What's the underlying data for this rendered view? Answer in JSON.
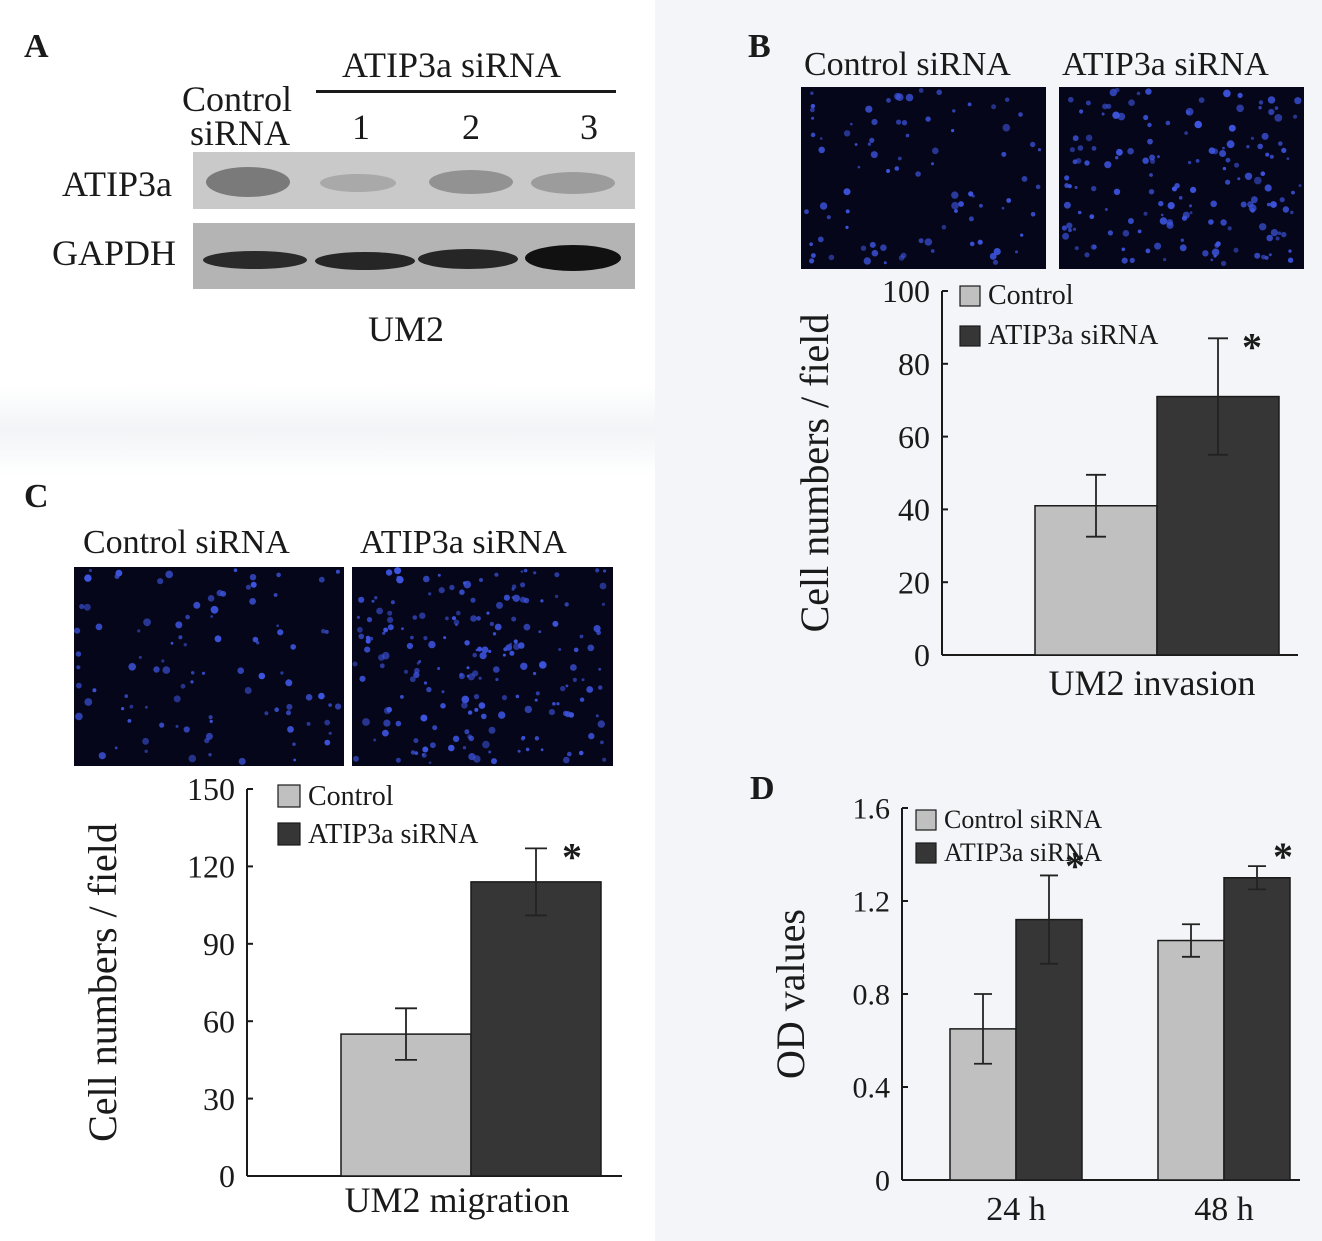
{
  "panel_a": {
    "letter": "A",
    "group_label": "ATIP3a siRNA",
    "lane_control_line1": "Control",
    "lane_control_line2": "siRNA",
    "lanes": [
      "1",
      "2",
      "3"
    ],
    "row_labels": [
      "ATIP3a",
      "GAPDH"
    ],
    "cell_line": "UM2"
  },
  "panel_b": {
    "letter": "B",
    "image_labels": [
      "Control siRNA",
      "ATIP3a siRNA"
    ]
  },
  "panel_c": {
    "letter": "C",
    "image_labels": [
      "Control siRNA",
      "ATIP3a siRNA"
    ]
  },
  "panel_d": {
    "letter": "D"
  },
  "colors": {
    "control": "#c0c0c0",
    "treatment": "#363636",
    "stain": "#3d55e0",
    "micro_bg": "#06061a"
  },
  "chart_data": [
    {
      "id": "B",
      "type": "bar",
      "xlabel": "UM2 invasion",
      "ylabel": "Cell numbers / field",
      "ylim": [
        0,
        100
      ],
      "yticks": [
        0,
        20,
        40,
        60,
        80,
        100
      ],
      "categories": [
        ""
      ],
      "legend_position": "top-left",
      "series": [
        {
          "name": "Control",
          "values": [
            41
          ],
          "errors": [
            8.5
          ],
          "sig": [
            ""
          ]
        },
        {
          "name": "ATIP3a siRNA",
          "values": [
            71
          ],
          "errors": [
            16
          ],
          "sig": [
            "*"
          ]
        }
      ]
    },
    {
      "id": "C",
      "type": "bar",
      "xlabel": "UM2 migration",
      "ylabel": "Cell numbers / field",
      "ylim": [
        0,
        150
      ],
      "yticks": [
        0,
        30,
        60,
        90,
        120,
        150
      ],
      "categories": [
        ""
      ],
      "legend_position": "top-left",
      "series": [
        {
          "name": "Control",
          "values": [
            55
          ],
          "errors": [
            10
          ],
          "sig": [
            ""
          ]
        },
        {
          "name": "ATIP3a siRNA",
          "values": [
            114
          ],
          "errors": [
            13
          ],
          "sig": [
            "*"
          ]
        }
      ]
    },
    {
      "id": "D",
      "type": "bar",
      "xlabel": "",
      "ylabel": "OD values",
      "ylim": [
        0,
        1.6
      ],
      "yticks": [
        "0",
        "0.4",
        "0.8",
        "1.2",
        "1.6"
      ],
      "categories": [
        "24 h",
        "48 h"
      ],
      "legend_position": "top-left",
      "series": [
        {
          "name": "Control siRNA",
          "values": [
            0.65,
            1.03
          ],
          "errors": [
            0.15,
            0.07
          ],
          "sig": [
            "",
            ""
          ]
        },
        {
          "name": "ATIP3a siRNA",
          "values": [
            1.12,
            1.3
          ],
          "errors": [
            0.19,
            0.05
          ],
          "sig": [
            "*",
            "*"
          ]
        }
      ]
    }
  ]
}
